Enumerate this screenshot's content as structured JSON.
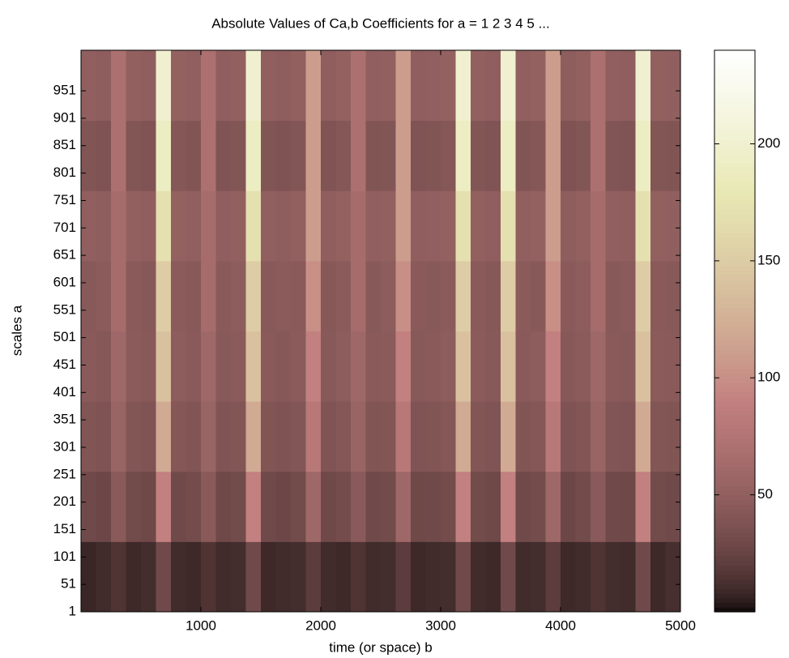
{
  "chart_data": {
    "type": "heatmap",
    "title": "Absolute Values of Ca,b Coefficients for a =  1 2 3 4 5 ...",
    "xlabel": "time (or space) b",
    "ylabel": "scales a",
    "colormap": "pink",
    "xlim": [
      0,
      5000
    ],
    "xticks": [
      1000,
      2000,
      3000,
      4000,
      5000
    ],
    "ylim": [
      1,
      1025
    ],
    "yticks": [
      1,
      51,
      101,
      151,
      201,
      251,
      301,
      351,
      401,
      451,
      501,
      551,
      601,
      651,
      701,
      751,
      801,
      851,
      901,
      951
    ],
    "clim": [
      0,
      240
    ],
    "cticks": [
      50,
      100,
      150,
      200
    ],
    "x_bins": [
      0,
      125,
      250,
      375,
      500,
      625,
      750,
      875,
      1000,
      1125,
      1250,
      1375,
      1500,
      1625,
      1750,
      1875,
      2000,
      2125,
      2250,
      2375,
      2500,
      2625,
      2750,
      2875,
      3000,
      3125,
      3250,
      3375,
      3500,
      3625,
      3750,
      3875,
      4000,
      4125,
      4250,
      4375,
      4500,
      4625,
      4750,
      4875,
      5000
    ],
    "y_bins": [
      1,
      129,
      257,
      385,
      513,
      641,
      769,
      897,
      1025
    ],
    "z": [
      [
        8,
        10,
        15,
        9,
        11,
        30,
        10,
        9,
        15,
        10,
        11,
        30,
        9,
        10,
        11,
        20,
        10,
        9,
        15,
        10,
        11,
        20,
        9,
        10,
        11,
        30,
        10,
        9,
        30,
        10,
        11,
        20,
        9,
        10,
        15,
        11,
        10,
        30,
        9,
        12
      ],
      [
        30,
        28,
        45,
        31,
        29,
        90,
        30,
        32,
        45,
        29,
        31,
        90,
        30,
        28,
        31,
        60,
        29,
        32,
        45,
        30,
        31,
        60,
        29,
        30,
        32,
        90,
        31,
        29,
        90,
        30,
        32,
        60,
        28,
        31,
        45,
        30,
        29,
        90,
        31,
        30
      ],
      [
        40,
        38,
        55,
        41,
        39,
        120,
        42,
        40,
        55,
        39,
        41,
        120,
        40,
        38,
        41,
        80,
        39,
        42,
        55,
        40,
        41,
        80,
        39,
        40,
        42,
        120,
        41,
        39,
        120,
        40,
        42,
        80,
        38,
        41,
        55,
        40,
        39,
        120,
        41,
        40
      ],
      [
        45,
        43,
        60,
        46,
        44,
        140,
        47,
        45,
        60,
        44,
        46,
        140,
        45,
        43,
        46,
        90,
        44,
        47,
        60,
        45,
        46,
        90,
        44,
        45,
        47,
        140,
        46,
        44,
        140,
        45,
        47,
        90,
        43,
        46,
        60,
        45,
        44,
        140,
        46,
        45
      ],
      [
        44,
        46,
        65,
        45,
        43,
        150,
        46,
        44,
        65,
        45,
        47,
        150,
        44,
        46,
        45,
        100,
        43,
        46,
        65,
        44,
        47,
        100,
        45,
        44,
        46,
        150,
        45,
        43,
        150,
        46,
        44,
        100,
        45,
        47,
        65,
        44,
        46,
        150,
        45,
        44
      ],
      [
        50,
        48,
        65,
        51,
        49,
        170,
        52,
        50,
        65,
        49,
        51,
        170,
        50,
        48,
        51,
        110,
        49,
        52,
        65,
        50,
        51,
        110,
        49,
        50,
        52,
        170,
        51,
        49,
        170,
        50,
        52,
        110,
        48,
        51,
        65,
        50,
        49,
        170,
        51,
        50
      ],
      [
        40,
        38,
        70,
        41,
        39,
        190,
        42,
        40,
        70,
        39,
        41,
        190,
        40,
        38,
        41,
        110,
        39,
        42,
        70,
        40,
        41,
        110,
        39,
        40,
        42,
        190,
        41,
        39,
        190,
        40,
        42,
        110,
        38,
        41,
        70,
        40,
        39,
        190,
        41,
        40
      ],
      [
        50,
        48,
        70,
        51,
        49,
        200,
        52,
        50,
        70,
        49,
        51,
        200,
        50,
        48,
        51,
        110,
        49,
        52,
        70,
        50,
        51,
        110,
        49,
        50,
        52,
        200,
        51,
        49,
        200,
        50,
        52,
        110,
        48,
        51,
        70,
        50,
        49,
        200,
        51,
        50
      ]
    ]
  }
}
